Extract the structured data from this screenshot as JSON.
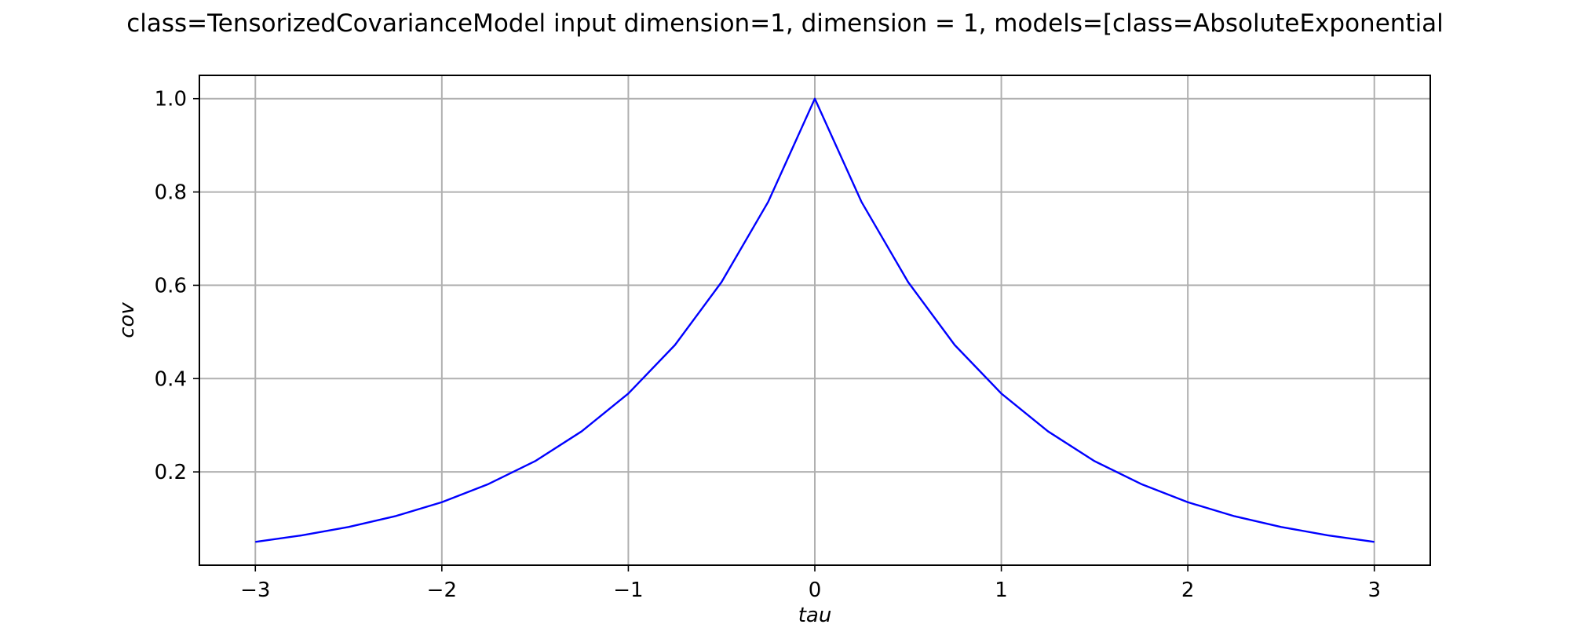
{
  "chart_data": {
    "type": "line",
    "title": "class=TensorizedCovarianceModel input dimension=1, dimension = 1, models=[class=AbsoluteExponential",
    "xlabel": "tau",
    "ylabel": "cov",
    "xlim": [
      -3.3,
      3.3
    ],
    "ylim": [
      0.0,
      1.05
    ],
    "xticks": [
      -3,
      -2,
      -1,
      0,
      1,
      2,
      3
    ],
    "xtick_labels": [
      "−3",
      "−2",
      "−1",
      "0",
      "1",
      "2",
      "3"
    ],
    "yticks": [
      0.2,
      0.4,
      0.6,
      0.8,
      1.0
    ],
    "ytick_labels": [
      "0.2",
      "0.4",
      "0.6",
      "0.8",
      "1.0"
    ],
    "grid": true,
    "series": [
      {
        "color": "#0000ff",
        "x": [
          -3.0,
          -2.75,
          -2.5,
          -2.25,
          -2.0,
          -1.75,
          -1.5,
          -1.25,
          -1.0,
          -0.75,
          -0.5,
          -0.25,
          0.0,
          0.25,
          0.5,
          0.75,
          1.0,
          1.25,
          1.5,
          1.75,
          2.0,
          2.25,
          2.5,
          2.75,
          3.0
        ],
        "y": [
          0.05,
          0.064,
          0.082,
          0.105,
          0.135,
          0.174,
          0.223,
          0.287,
          0.368,
          0.472,
          0.607,
          0.779,
          1.0,
          0.779,
          0.607,
          0.472,
          0.368,
          0.287,
          0.223,
          0.174,
          0.135,
          0.105,
          0.082,
          0.064,
          0.05
        ]
      }
    ]
  }
}
